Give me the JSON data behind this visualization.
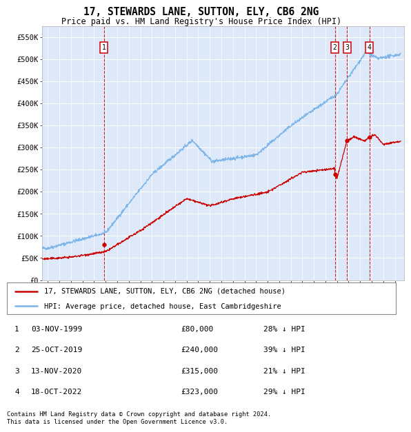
{
  "title": "17, STEWARDS LANE, SUTTON, ELY, CB6 2NG",
  "subtitle": "Price paid vs. HM Land Registry's House Price Index (HPI)",
  "background_color": "#dde8f8",
  "hpi_color": "#7ab4e8",
  "price_color": "#cc0000",
  "ylim": [
    0,
    575000
  ],
  "yticks": [
    0,
    50000,
    100000,
    150000,
    200000,
    250000,
    300000,
    350000,
    400000,
    450000,
    500000,
    550000
  ],
  "ytick_labels": [
    "£0",
    "£50K",
    "£100K",
    "£150K",
    "£200K",
    "£250K",
    "£300K",
    "£350K",
    "£400K",
    "£450K",
    "£500K",
    "£550K"
  ],
  "sales": [
    {
      "label": "1",
      "date_dec": 1999.84,
      "price": 80000
    },
    {
      "label": "2",
      "date_dec": 2019.81,
      "price": 240000
    },
    {
      "label": "3",
      "date_dec": 2020.87,
      "price": 315000
    },
    {
      "label": "4",
      "date_dec": 2022.79,
      "price": 323000
    }
  ],
  "legend_line1": "17, STEWARDS LANE, SUTTON, ELY, CB6 2NG (detached house)",
  "legend_line2": "HPI: Average price, detached house, East Cambridgeshire",
  "table_rows": [
    {
      "num": "1",
      "date": "03-NOV-1999",
      "price": "£80,000",
      "pct": "28% ↓ HPI"
    },
    {
      "num": "2",
      "date": "25-OCT-2019",
      "price": "£240,000",
      "pct": "39% ↓ HPI"
    },
    {
      "num": "3",
      "date": "13-NOV-2020",
      "price": "£315,000",
      "pct": "21% ↓ HPI"
    },
    {
      "num": "4",
      "date": "18-OCT-2022",
      "price": "£323,000",
      "pct": "29% ↓ HPI"
    }
  ],
  "footer1": "Contains HM Land Registry data © Crown copyright and database right 2024.",
  "footer2": "This data is licensed under the Open Government Licence v3.0."
}
